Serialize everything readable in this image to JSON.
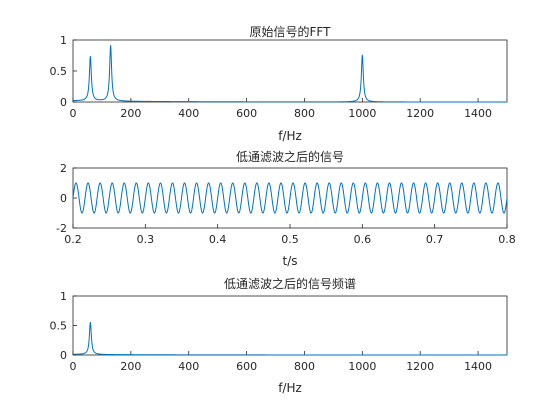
{
  "chart_data": [
    {
      "type": "line",
      "title": "原始信号的FFT",
      "xlabel": "f/Hz",
      "ylabel": "",
      "xlim": [
        0,
        1500
      ],
      "ylim": [
        0,
        1
      ],
      "xticks": [
        0,
        200,
        400,
        600,
        800,
        1000,
        1200,
        1400
      ],
      "yticks": [
        0,
        0.5,
        1
      ],
      "grid": false,
      "series": [
        {
          "color": "#0072bd",
          "kind": "spectrum",
          "peaks": [
            {
              "x": 60,
              "y": 0.72
            },
            {
              "x": 130,
              "y": 0.9
            },
            {
              "x": 1000,
              "y": 0.76
            }
          ],
          "baseline": 0.02
        }
      ]
    },
    {
      "type": "line",
      "title": "低通滤波之后的信号",
      "xlabel": "t/s",
      "ylabel": "",
      "xlim": [
        0.2,
        0.8
      ],
      "ylim": [
        -2,
        2
      ],
      "xticks": [
        0.2,
        0.3,
        0.4,
        0.5,
        0.6,
        0.7,
        0.8
      ],
      "yticks": [
        -2,
        0,
        2
      ],
      "grid": false,
      "series": [
        {
          "color": "#0072bd",
          "kind": "sine",
          "amplitude": 1.0,
          "frequency_hz": 60
        }
      ]
    },
    {
      "type": "line",
      "title": "低通滤波之后的信号频谱",
      "xlabel": "f/Hz",
      "ylabel": "",
      "xlim": [
        0,
        1500
      ],
      "ylim": [
        0,
        1
      ],
      "xticks": [
        0,
        200,
        400,
        600,
        800,
        1000,
        1200,
        1400
      ],
      "yticks": [
        0,
        0.5,
        1
      ],
      "grid": false,
      "series": [
        {
          "color": "#0072bd",
          "kind": "spectrum",
          "peaks": [
            {
              "x": 60,
              "y": 0.55
            }
          ],
          "baseline": 0.01
        }
      ]
    }
  ]
}
